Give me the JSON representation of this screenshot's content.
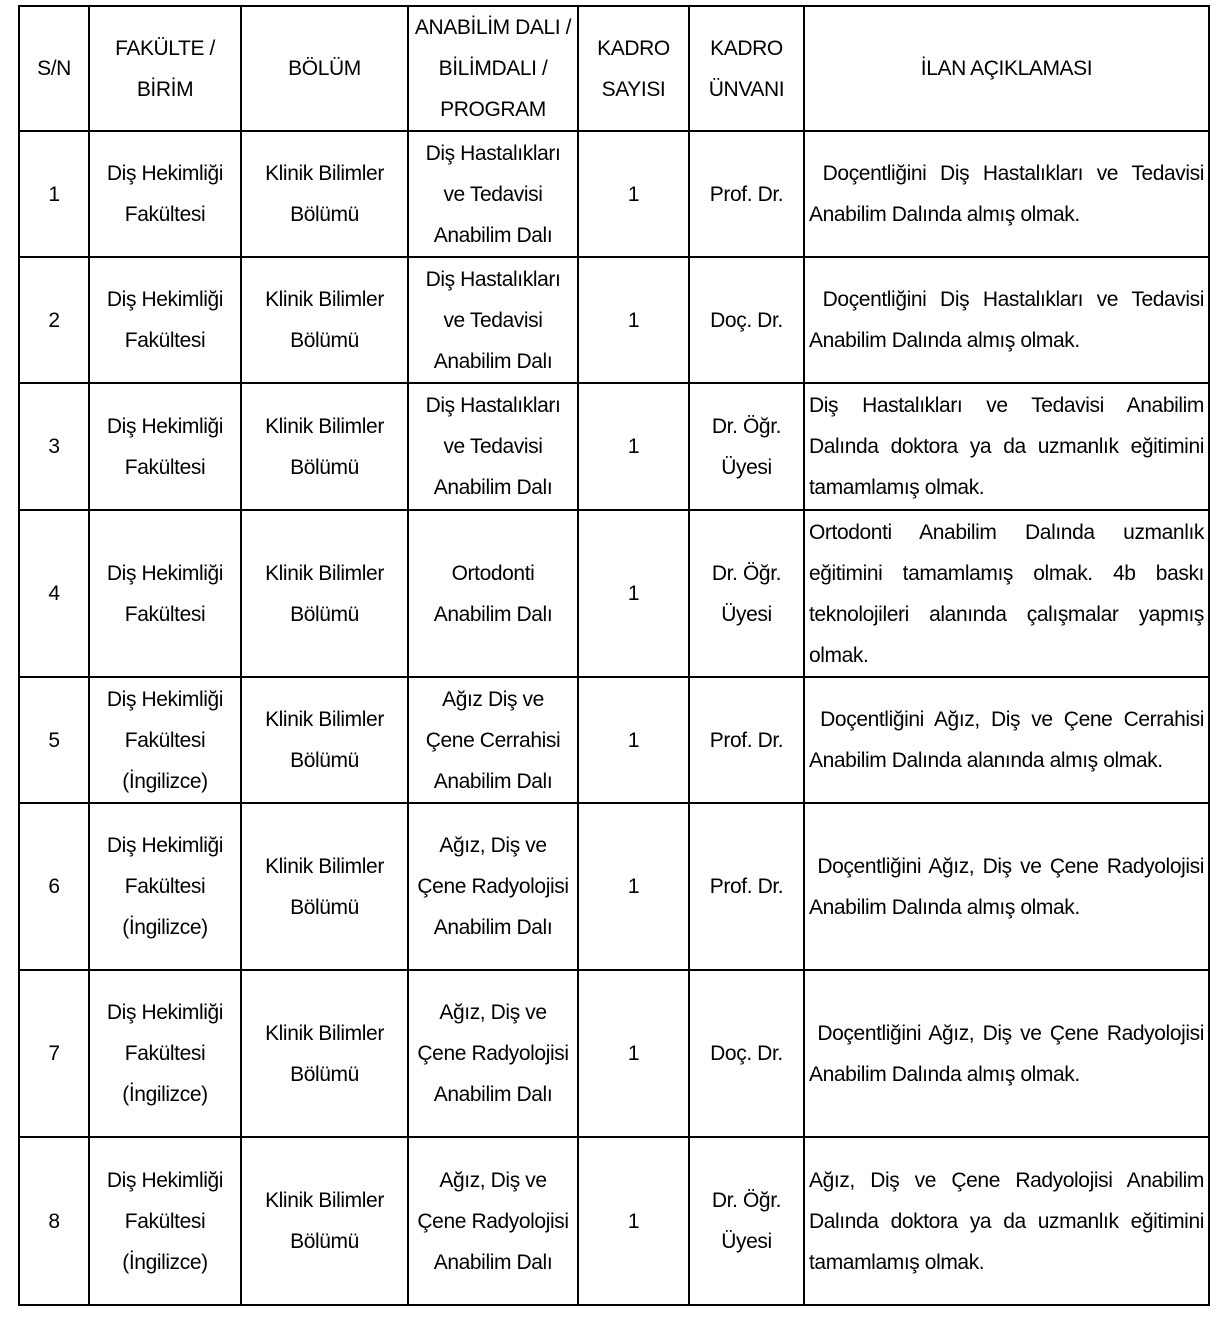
{
  "headers": [
    "S/N",
    "FAKÜLTE / BİRİM",
    "BÖLÜM",
    "ANABİLİM DALI / BİLİMDALI / PROGRAM",
    "KADRO SAYISI",
    "KADRO ÜNVANI",
    "İLAN AÇIKLAMASI"
  ],
  "rows": [
    {
      "sn": "1",
      "faculty": "Diş Hekimliği Fakültesi",
      "department": "Klinik Bilimler Bölümü",
      "program": "Diş Hastalıkları ve Tedavisi Anabilim Dalı",
      "count": "1",
      "title": "Prof. Dr.",
      "description": " Doçentliğini Diş Hastalıkları ve Tedavisi Anabilim Dalında almış olmak."
    },
    {
      "sn": "2",
      "faculty": "Diş Hekimliği Fakültesi",
      "department": "Klinik Bilimler Bölümü",
      "program": "Diş Hastalıkları ve Tedavisi Anabilim Dalı",
      "count": "1",
      "title": "Doç. Dr.",
      "description": " Doçentliğini Diş Hastalıkları ve Tedavisi Anabilim Dalında almış olmak."
    },
    {
      "sn": "3",
      "faculty": "Diş Hekimliği Fakültesi",
      "department": "Klinik Bilimler Bölümü",
      "program": "Diş Hastalıkları ve Tedavisi Anabilim Dalı",
      "count": "1",
      "title": "Dr. Öğr. Üyesi",
      "description": "Diş Hastalıkları ve Tedavisi Anabilim Dalında doktora ya da uzmanlık eğitimini tamamlamış olmak."
    },
    {
      "sn": "4",
      "faculty": "Diş Hekimliği Fakültesi",
      "department": "Klinik Bilimler Bölümü",
      "program": "Ortodonti Anabilim Dalı",
      "count": "1",
      "title": "Dr. Öğr. Üyesi",
      "description": "Ortodonti Anabilim Dalında uzmanlık eğitimini tamamlamış olmak. 4b baskı teknolojileri alanında çalışmalar yapmış olmak."
    },
    {
      "sn": "5",
      "faculty": "Diş Hekimliği Fakültesi (İngilizce)",
      "department": "Klinik Bilimler Bölümü",
      "program": "Ağız Diş ve Çene Cerrahisi Anabilim Dalı",
      "count": "1",
      "title": "Prof. Dr.",
      "description": " Doçentliğini Ağız, Diş ve Çene Cerrahisi Anabilim Dalında alanında almış olmak."
    },
    {
      "sn": "6",
      "faculty": "Diş Hekimliği Fakültesi (İngilizce)",
      "department": "Klinik Bilimler Bölümü",
      "program": "Ağız, Diş ve Çene Radyolojisi Anabilim Dalı",
      "count": "1",
      "title": "Prof. Dr.",
      "description": " Doçentliğini Ağız, Diş ve Çene Radyolojisi Anabilim Dalında almış olmak."
    },
    {
      "sn": "7",
      "faculty": "Diş Hekimliği Fakültesi (İngilizce)",
      "department": "Klinik Bilimler Bölümü",
      "program": "Ağız, Diş ve Çene Radyolojisi Anabilim Dalı",
      "count": "1",
      "title": "Doç. Dr.",
      "description": " Doçentliğini Ağız, Diş ve Çene Radyolojisi Anabilim Dalında almış olmak."
    },
    {
      "sn": "8",
      "faculty": "Diş Hekimliği Fakültesi (İngilizce)",
      "department": "Klinik Bilimler Bölümü",
      "program": "Ağız, Diş ve Çene Radyolojisi Anabilim Dalı",
      "count": "1",
      "title": "Dr. Öğr. Üyesi",
      "description": "Ağız, Diş ve Çene Radyolojisi Anabilim Dalında doktora ya da uzmanlık eğitimini tamamlamış olmak."
    }
  ]
}
